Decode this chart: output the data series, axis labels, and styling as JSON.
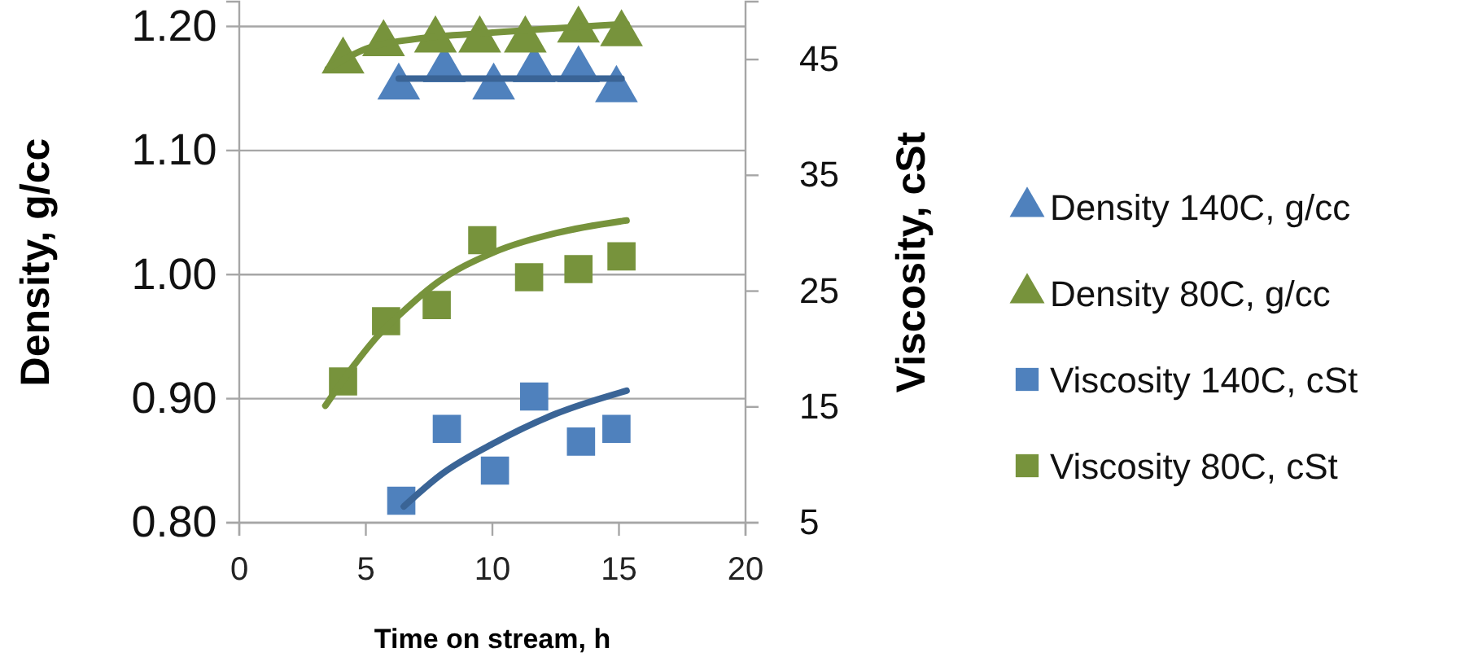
{
  "chart_data": {
    "type": "scatter",
    "xlabel": "Time on stream, h",
    "ylabel": "Density, g/cc",
    "y2label": "Viscosity, cSt",
    "xlim": [
      0,
      20
    ],
    "xticks": [
      0,
      5,
      10,
      15,
      20
    ],
    "ylim": [
      0.8,
      1.22
    ],
    "yticks": [
      {
        "value": 0.8,
        "label": "0.80"
      },
      {
        "value": 0.9,
        "label": "0.90"
      },
      {
        "value": 1.0,
        "label": "1.00"
      },
      {
        "value": 1.1,
        "label": "1.10"
      },
      {
        "value": 1.2,
        "label": "1.20"
      }
    ],
    "y2lim": [
      5,
      50
    ],
    "y2ticks": [
      5,
      15,
      25,
      35,
      45
    ],
    "grid": "y",
    "legend": "right",
    "series": [
      {
        "name": "Density 140C, g/cc",
        "marker": "triangle",
        "color": "#4f81bd",
        "x": [
          6.3,
          8.1,
          10.05,
          11.65,
          13.4,
          14.9
        ],
        "values": [
          1.151,
          1.165,
          1.151,
          1.165,
          1.165,
          1.149
        ]
      },
      {
        "name": "Density 80C, g/cc",
        "marker": "triangle",
        "color": "#77933c",
        "x": [
          4.1,
          5.7,
          7.75,
          9.5,
          11.3,
          13.4,
          15.1
        ],
        "values": [
          1.172,
          1.186,
          1.189,
          1.189,
          1.189,
          1.197,
          1.194
        ]
      },
      {
        "name": "Viscosity 140C, cSt",
        "marker": "square",
        "axis": "y2",
        "color": "#4f81bd",
        "x": [
          6.4,
          8.2,
          10.1,
          11.65,
          13.5,
          14.9
        ],
        "values": [
          6.9,
          13.1,
          9.5,
          15.9,
          12.0,
          13.1
        ]
      },
      {
        "name": "Viscosity 80C, cSt",
        "marker": "square",
        "axis": "y2",
        "color": "#77933c",
        "x": [
          4.1,
          5.8,
          7.8,
          9.6,
          11.45,
          13.4,
          15.1
        ],
        "values": [
          17.2,
          22.4,
          23.8,
          29.4,
          26.2,
          26.9,
          28.0
        ]
      },
      {
        "type": "line",
        "color": "#3a6496",
        "x": [
          6.3,
          15.1
        ],
        "values": [
          1.158,
          1.158
        ]
      },
      {
        "type": "line",
        "color": "#77933c",
        "x": [
          3.5,
          5,
          7,
          10,
          15.3
        ],
        "values": [
          1.166,
          1.182,
          1.19,
          1.195,
          1.202
        ]
      },
      {
        "type": "line",
        "axis": "y2",
        "color": "#3a6496",
        "x": [
          6.5,
          8,
          10,
          12.5,
          15.3
        ],
        "values": [
          6.4,
          9.2,
          11.8,
          14.4,
          16.4
        ]
      },
      {
        "type": "line",
        "axis": "y2",
        "color": "#77933c",
        "x": [
          3.4,
          4.5,
          5.5,
          6.5,
          7.8,
          10,
          12.5,
          15.3
        ],
        "values": [
          15.1,
          18.5,
          21.2,
          23.3,
          25.7,
          28.3,
          30.0,
          31.1
        ]
      }
    ]
  }
}
